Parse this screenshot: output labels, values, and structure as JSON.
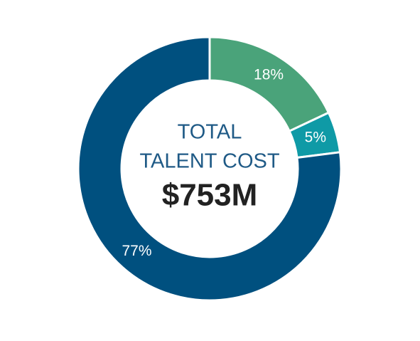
{
  "chart_data": {
    "type": "donut",
    "title_lines": [
      "TOTAL",
      "TALENT COST"
    ],
    "center_value": "$753M",
    "values": [
      18,
      5,
      77
    ],
    "value_labels": [
      "18%",
      "5%",
      "77%"
    ],
    "colors": [
      "#4aa37a",
      "#0f9aa6",
      "#00507f"
    ]
  }
}
